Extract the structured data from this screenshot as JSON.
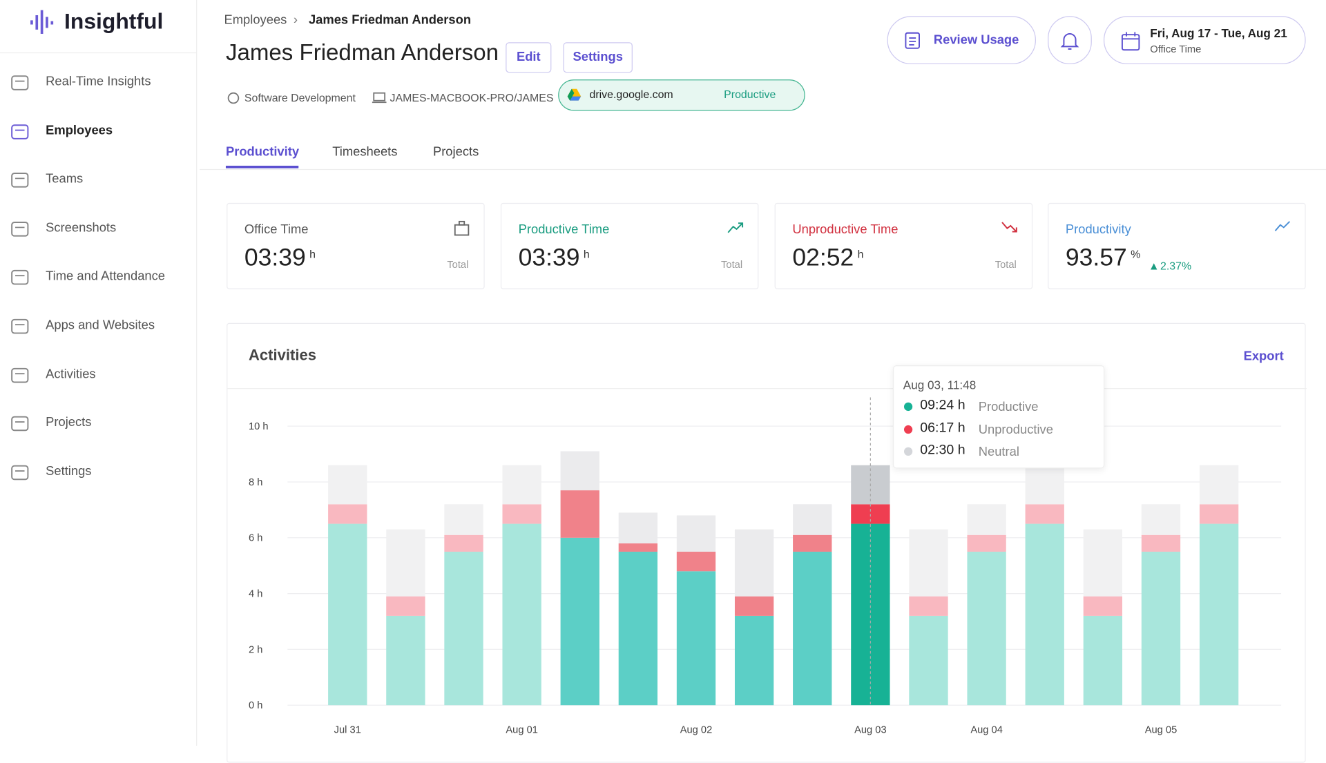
{
  "sidebar": {
    "logo": "Insightful",
    "items": [
      "Real-Time Insights",
      "Employees",
      "Teams",
      "Screenshots",
      "Time and Attendance",
      "Apps and Websites",
      "Activities",
      "Projects",
      "Settings"
    ],
    "active_item": 1
  },
  "header": {
    "breadcrumb": [
      "Employees",
      "James Friedman Anderson"
    ],
    "title": "James Friedman Anderson",
    "buttons": [
      "Edit",
      "Settings"
    ],
    "team": "Software Development",
    "computer": "JAMES-MACBOOK-PRO/JAMES",
    "current_app": {
      "domain": "drive.google.com",
      "status": "Productive"
    },
    "review": "Review Usage",
    "date_range": "Fri, Aug 17 - Tue, Aug 21",
    "date_sub": "Office Time"
  },
  "tabs": [
    "Productivity",
    "Timesheets",
    "Projects"
  ],
  "cards": [
    {
      "title": "Office Time",
      "value": "03:39",
      "unit": "h",
      "note": "Total"
    },
    {
      "title": "Productive Time",
      "value": "03:39",
      "unit": "h",
      "note": "Total"
    },
    {
      "title": "Unproductive Time",
      "value": "02:52",
      "unit": "h",
      "note": "Total"
    },
    {
      "title": "Productivity",
      "value": "93.57",
      "unit": "%",
      "note": "2.37%"
    }
  ],
  "chart_data": {
    "type": "stacked-bar",
    "title": "Activities",
    "action": "Export",
    "categories": [
      "Jul 31",
      null,
      null,
      "Aug 01",
      null,
      null,
      "Aug 02",
      null,
      null,
      "Aug 03",
      null,
      "Aug 04",
      null,
      null,
      "Aug 05",
      null
    ],
    "series": [
      {
        "name": "Productive",
        "colors": [
          "#a8e6dc",
          "#a8e6dc",
          "#a8e6dc",
          "#a8e6dc",
          "#5ccfc6",
          "#5ccfc6",
          "#5ccfc6",
          "#5ccfc6",
          "#5ccfc6",
          "#17b295",
          "#a8e6dc",
          "#a8e6dc",
          "#a8e6dc",
          "#a8e6dc",
          "#a8e6dc",
          "#a8e6dc"
        ],
        "values": [
          6.5,
          3.2,
          5.5,
          6.5,
          6.0,
          5.5,
          4.8,
          3.2,
          5.5,
          6.5,
          3.2,
          5.5,
          6.5,
          3.2,
          5.5,
          6.5
        ]
      },
      {
        "name": "Unproductive",
        "colors": [
          "#f9b8c0",
          "#f9b8c0",
          "#f9b8c0",
          "#f9b8c0",
          "#f0828a",
          "#f0828a",
          "#f0828a",
          "#f0828a",
          "#f0828a",
          "#ef3e51",
          "#f9b8c0",
          "#f9b8c0",
          "#f9b8c0",
          "#f9b8c0",
          "#f9b8c0",
          "#f9b8c0"
        ],
        "values": [
          0.7,
          0.7,
          0.6,
          0.7,
          1.7,
          0.3,
          0.7,
          0.7,
          0.6,
          0.7,
          0.7,
          0.6,
          0.7,
          0.7,
          0.6,
          0.7
        ]
      },
      {
        "name": "Neutral",
        "colors": [
          "#f1f1f2",
          "#f1f1f2",
          "#f1f1f2",
          "#f1f1f2",
          "#ebebed",
          "#ebebed",
          "#ebebed",
          "#ebebed",
          "#ebebed",
          "#c9ccd0",
          "#f1f1f2",
          "#f1f1f2",
          "#f1f1f2",
          "#f1f1f2",
          "#f1f1f2",
          "#f1f1f2"
        ],
        "values": [
          1.4,
          2.4,
          1.1,
          1.4,
          1.4,
          1.1,
          1.3,
          2.4,
          1.1,
          1.4,
          2.4,
          1.1,
          1.4,
          2.4,
          1.1,
          1.4
        ]
      }
    ],
    "ylim": [
      0,
      10
    ],
    "yticks": [
      {
        "value": 0,
        "label": "0 h"
      },
      {
        "value": 2,
        "label": "2 h"
      },
      {
        "value": 4,
        "label": "4 h"
      },
      {
        "value": 6,
        "label": "6 h"
      },
      {
        "value": 8,
        "label": "8 h"
      },
      {
        "value": 10,
        "label": "10 h"
      }
    ],
    "grid": true,
    "tooltip": {
      "title": "Aug 03, 11:48",
      "rows": [
        {
          "value": "09:24 h",
          "label": "Productive"
        },
        {
          "value": "06:17 h",
          "label": "Unproductive"
        },
        {
          "value": "02:30 h",
          "label": "Neutral"
        }
      ]
    }
  }
}
